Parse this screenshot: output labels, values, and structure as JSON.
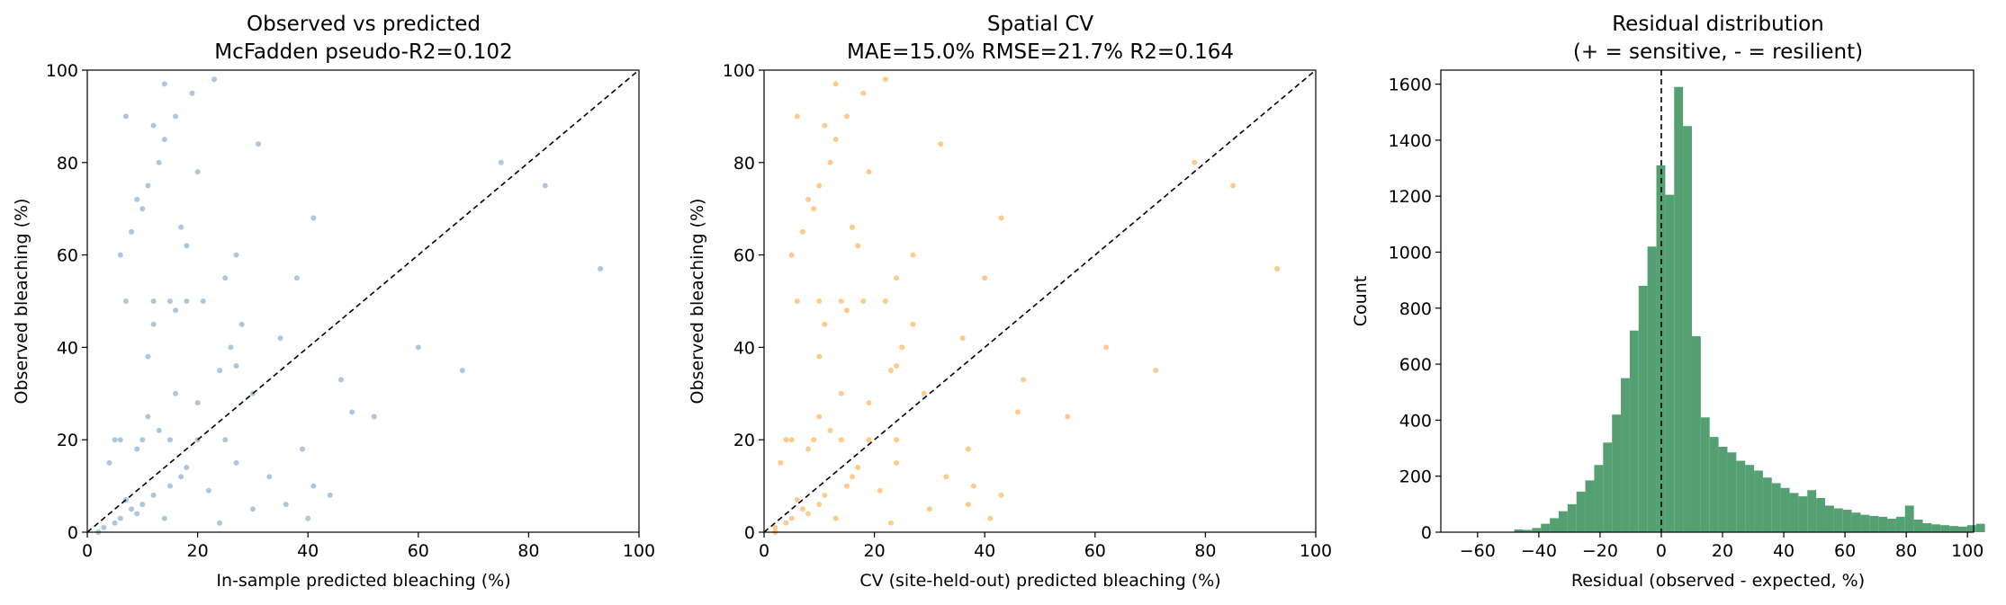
{
  "chart_data": [
    {
      "type": "scatter",
      "title": "Observed vs predicted",
      "subtitle": "McFadden pseudo-R2=0.102",
      "xlabel": "In-sample predicted bleaching (%)",
      "ylabel": "Observed bleaching (%)",
      "xlim": [
        0,
        100
      ],
      "ylim": [
        0,
        100
      ],
      "xticks": [
        0,
        20,
        40,
        60,
        80,
        100
      ],
      "yticks": [
        0,
        20,
        40,
        60,
        80,
        100
      ],
      "point_color": "#4682b4",
      "reference_line": "y = x (dashed)",
      "series": [
        {
          "x": [
            3,
            5,
            6,
            8,
            9,
            10,
            12,
            14,
            15,
            17,
            4,
            6,
            7,
            9,
            11,
            13,
            16,
            18,
            20,
            22,
            24,
            26,
            28,
            30,
            33,
            36,
            40,
            2,
            7,
            12,
            15,
            18,
            21,
            25,
            27,
            8,
            10,
            11,
            13,
            14,
            16,
            19,
            23,
            6,
            9,
            12,
            14,
            17,
            20,
            27,
            31,
            35,
            38,
            41,
            46,
            52,
            60,
            68,
            75,
            83,
            93,
            5,
            10,
            15,
            20,
            25,
            30,
            41,
            12,
            18,
            24,
            7,
            11,
            16,
            27,
            39,
            44,
            48
          ],
          "y": [
            1,
            2,
            3,
            5,
            4,
            6,
            8,
            3,
            10,
            12,
            15,
            20,
            7,
            18,
            25,
            22,
            30,
            14,
            28,
            9,
            35,
            40,
            45,
            5,
            12,
            6,
            3,
            0,
            50,
            50,
            50,
            50,
            50,
            55,
            60,
            65,
            70,
            75,
            80,
            85,
            90,
            95,
            98,
            60,
            72,
            88,
            97,
            66,
            78,
            36,
            84,
            42,
            55,
            68,
            33,
            25,
            40,
            35,
            80,
            75,
            57,
            20,
            20,
            20,
            20,
            20,
            30,
            10,
            45,
            62,
            2,
            90,
            38,
            48,
            15,
            18,
            8,
            26
          ]
        }
      ]
    },
    {
      "type": "scatter",
      "title": "Spatial CV",
      "subtitle": "MAE=15.0% RMSE=21.7% R2=0.164",
      "xlabel": "CV (site-held-out) predicted bleaching (%)",
      "ylabel": "Observed bleaching (%)",
      "xlim": [
        0,
        100
      ],
      "ylim": [
        0,
        100
      ],
      "xticks": [
        0,
        20,
        40,
        60,
        80,
        100
      ],
      "yticks": [
        0,
        20,
        40,
        60,
        80,
        100
      ],
      "point_color": "#ff8c00",
      "reference_line": "y = x (dashed)",
      "series": [
        {
          "x": [
            2,
            4,
            5,
            7,
            8,
            10,
            11,
            13,
            15,
            16,
            3,
            5,
            6,
            8,
            10,
            12,
            14,
            17,
            19,
            21,
            23,
            25,
            27,
            30,
            33,
            37,
            41,
            2,
            6,
            10,
            14,
            18,
            22,
            24,
            27,
            7,
            9,
            10,
            12,
            13,
            15,
            18,
            22,
            5,
            8,
            11,
            13,
            16,
            19,
            24,
            32,
            36,
            40,
            43,
            47,
            55,
            62,
            71,
            78,
            85,
            93,
            4,
            9,
            14,
            19,
            24,
            29,
            38,
            11,
            17,
            23,
            6,
            10,
            15,
            24,
            37,
            43,
            46
          ],
          "y": [
            1,
            2,
            3,
            5,
            4,
            6,
            8,
            3,
            10,
            12,
            15,
            20,
            7,
            18,
            25,
            22,
            30,
            14,
            28,
            9,
            35,
            40,
            45,
            5,
            12,
            6,
            3,
            0,
            50,
            50,
            50,
            50,
            50,
            55,
            60,
            65,
            70,
            75,
            80,
            85,
            90,
            95,
            98,
            60,
            72,
            88,
            97,
            66,
            78,
            36,
            84,
            42,
            55,
            68,
            33,
            25,
            40,
            35,
            80,
            75,
            57,
            20,
            20,
            20,
            20,
            20,
            30,
            10,
            45,
            62,
            2,
            90,
            38,
            48,
            15,
            18,
            8,
            26
          ]
        }
      ]
    },
    {
      "type": "bar",
      "subtype": "histogram",
      "title": "Residual distribution",
      "subtitle": "(+ = sensitive, - = resilient)",
      "xlabel": "Residual (observed - expected, %)",
      "ylabel": "Count",
      "xlim": [
        -72,
        102
      ],
      "ylim": [
        0,
        1650
      ],
      "xticks": [
        -60,
        -40,
        -20,
        0,
        20,
        40,
        60,
        80,
        100
      ],
      "yticks": [
        0,
        200,
        400,
        600,
        800,
        1000,
        1200,
        1400,
        1600
      ],
      "bar_color": "#55a072",
      "reference_line": "x = 0 (dashed)",
      "bin_start": -48,
      "bin_width": 2.9,
      "counts": [
        10,
        8,
        15,
        30,
        50,
        75,
        100,
        145,
        185,
        240,
        320,
        420,
        550,
        720,
        880,
        1020,
        1310,
        1205,
        1590,
        1450,
        700,
        410,
        340,
        305,
        285,
        255,
        240,
        220,
        195,
        175,
        158,
        140,
        128,
        150,
        122,
        95,
        85,
        80,
        70,
        62,
        58,
        55,
        48,
        55,
        95,
        45,
        32,
        28,
        25,
        22,
        20,
        25,
        30
      ]
    }
  ]
}
